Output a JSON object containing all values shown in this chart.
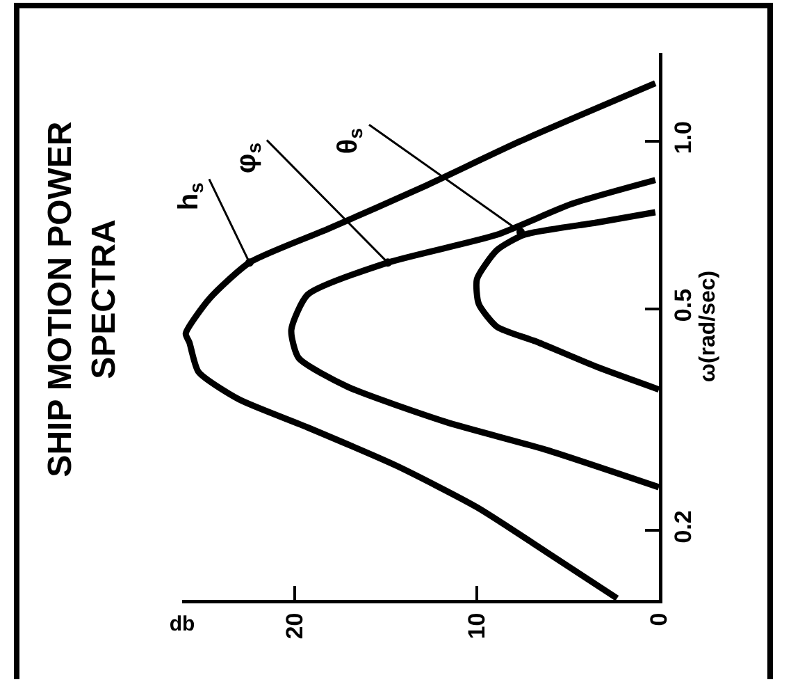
{
  "chart_data": {
    "type": "line",
    "title": "SHIP MOTION POWER SPECTRA",
    "xlabel": "db",
    "ylabel": "ω(rad/sec)",
    "log": "y",
    "xlim": [
      26.2,
      0
    ],
    "xticks": [
      20,
      10,
      0
    ],
    "ylim": [
      0.15,
      1.44
    ],
    "yticks": [
      0.2,
      0.5,
      {
        "value": 1,
        "label": "1.0"
      }
    ],
    "grid": false,
    "marker": "none",
    "line_style": "solid",
    "series": [
      {
        "color": "#000000",
        "x": [
          2.3,
          6.2,
          10.0,
          14.4,
          19.3,
          23.1,
          25.3,
          25.8,
          26.0,
          24.7,
          22.5,
          18.2,
          13.0,
          7.6,
          0.2
        ],
        "values": [
          0.151,
          0.183,
          0.22,
          0.261,
          0.306,
          0.344,
          0.385,
          0.435,
          0.451,
          0.521,
          0.605,
          0.695,
          0.826,
          1.0,
          1.27
        ]
      },
      {
        "color": "#000000",
        "x": [
          0,
          6.2,
          11.7,
          17.1,
          19.8,
          20.2,
          19.3,
          14.9,
          8.9,
          4.8,
          0.2
        ],
        "values": [
          0.239,
          0.279,
          0.313,
          0.362,
          0.408,
          0.458,
          0.53,
          0.605,
          0.679,
          0.771,
          0.851
        ]
      },
      {
        "color": "#000000",
        "x": [
          0,
          3.4,
          6.7,
          8.9,
          9.9,
          10.0,
          8.9,
          7.4,
          3.4,
          0.2
        ],
        "values": [
          0.358,
          0.393,
          0.436,
          0.464,
          0.51,
          0.565,
          0.637,
          0.679,
          0.714,
          0.745
        ]
      }
    ],
    "annotations": [
      {
        "text": "h$_{s}$",
        "x": 22.5,
        "y": 0.605
      },
      {
        "text": "φ$_{s}$",
        "x": 14.9,
        "y": 0.605
      },
      {
        "text": "θ$_{s}$",
        "x": 7.6,
        "y": 0.687
      }
    ]
  }
}
